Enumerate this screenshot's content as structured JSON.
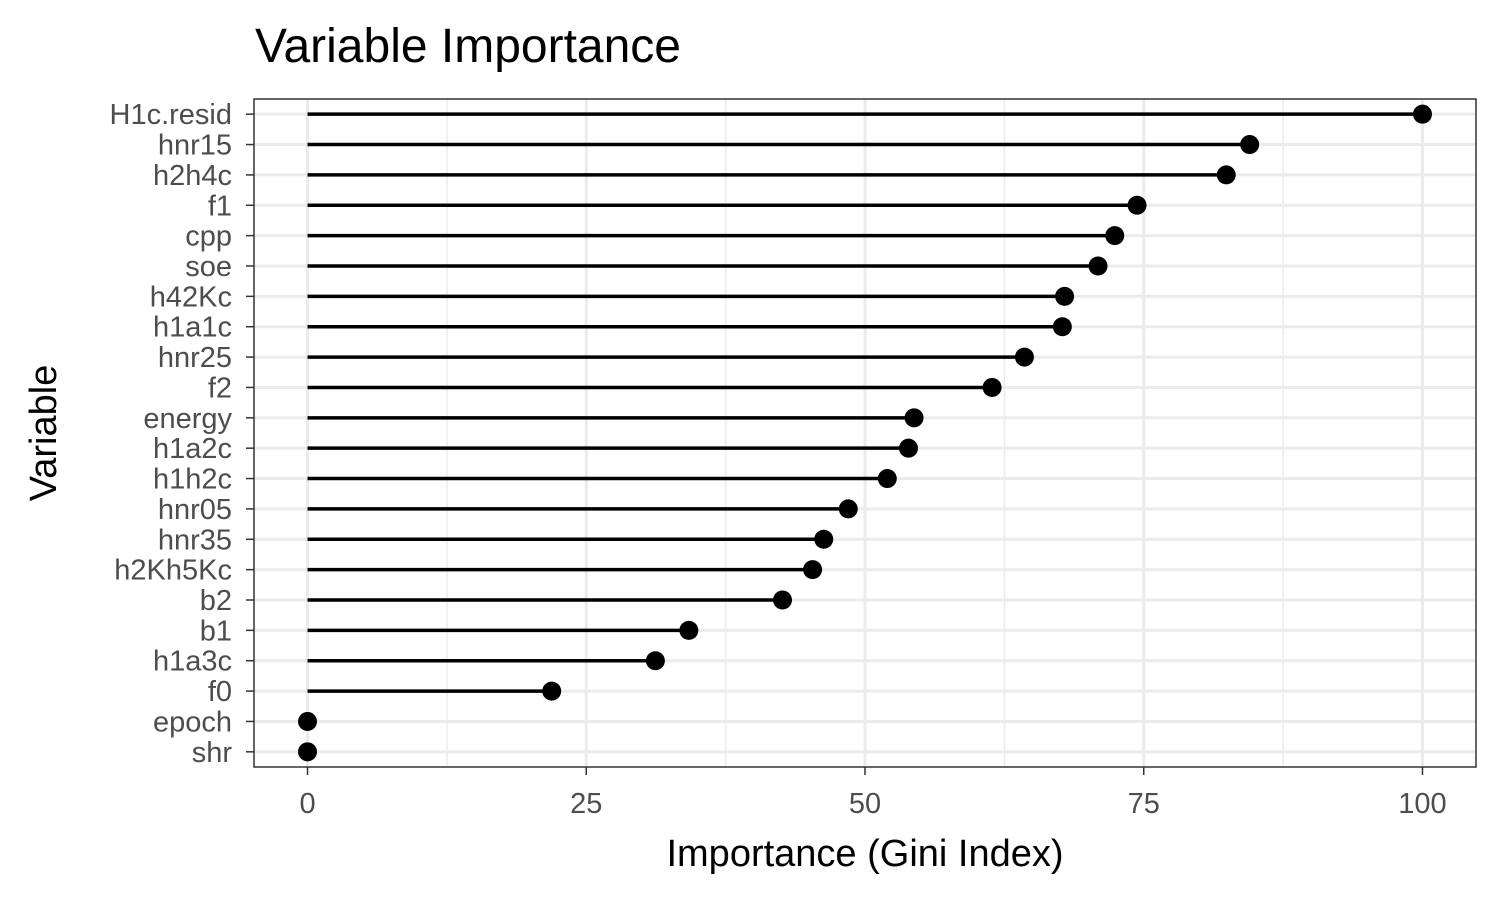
{
  "chart_data": {
    "type": "lollipop",
    "title": "Variable Importance",
    "xlabel": "Importance (Gini Index)",
    "ylabel": "Variable",
    "xlim": [
      -4.8,
      104.8
    ],
    "xticks": [
      0,
      25,
      50,
      75,
      100
    ],
    "grid": true,
    "theme": "bw",
    "categories": [
      "H1c.resid",
      "hnr15",
      "h2h4c",
      "f1",
      "cpp",
      "soe",
      "h42Kc",
      "h1a1c",
      "hnr25",
      "f2",
      "energy",
      "h1a2c",
      "h1h2c",
      "hnr05",
      "hnr35",
      "h2Kh5Kc",
      "b2",
      "b1",
      "h1a3c",
      "f0",
      "epoch",
      "shr"
    ],
    "values": [
      100,
      84.5,
      82.4,
      74.4,
      72.4,
      70.9,
      67.9,
      67.7,
      64.3,
      61.4,
      54.4,
      53.9,
      52.0,
      48.5,
      46.3,
      45.3,
      42.6,
      34.2,
      31.2,
      21.9,
      0,
      0
    ],
    "colors": {
      "mark": "#000000",
      "grid": "#ebebeb",
      "panel_border": "#333333",
      "tick_text": "#4d4d4d"
    }
  }
}
